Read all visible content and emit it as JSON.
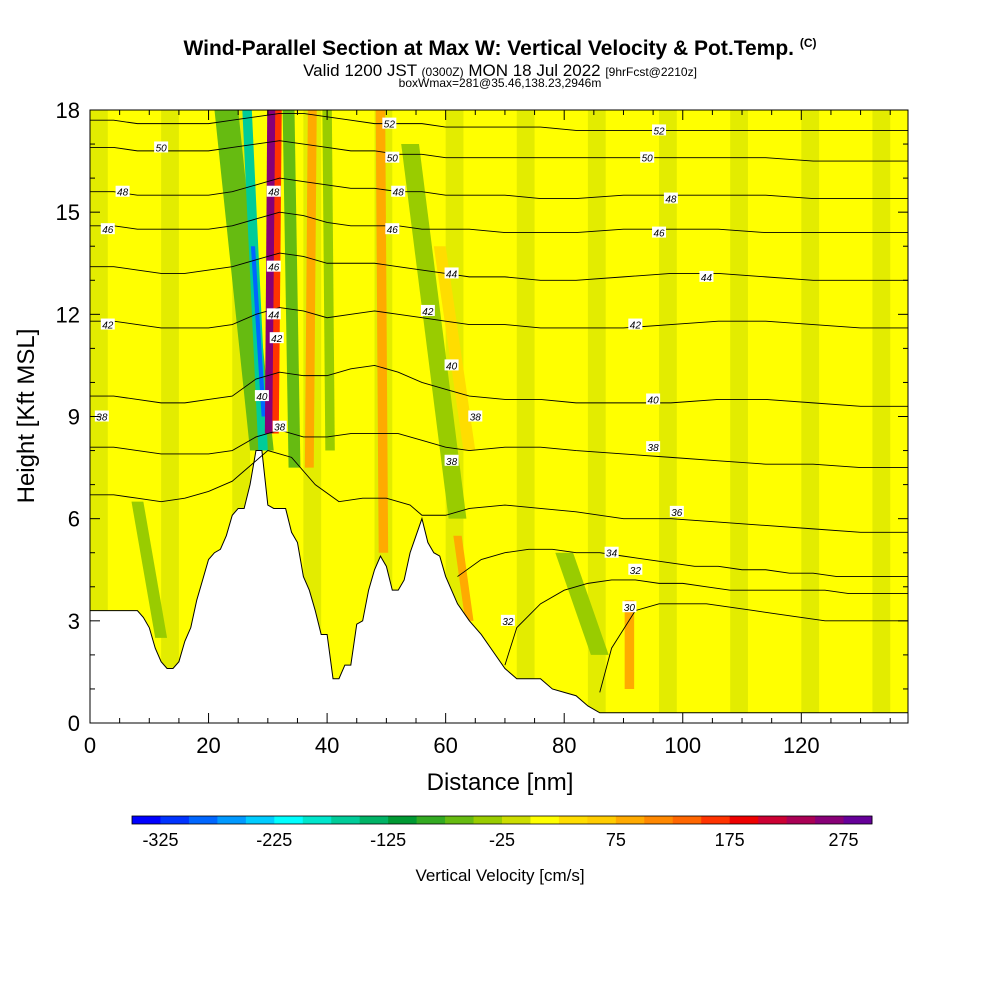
{
  "header": {
    "title": "Wind-Parallel Section at Max W: Vertical Velocity & Pot.Temp.",
    "copyright": "(C)",
    "valid_prefix": "Valid 1200 JST",
    "valid_utc": "(0300Z)",
    "valid_date": "MON 18 Jul 2022",
    "forecast": "[9hrFcst@2210z]",
    "boxwmax": "boxWmax=281@35.46,138.23,2946m"
  },
  "chart_data": {
    "type": "heatmap",
    "title": "Wind-Parallel Section at Max W: Vertical Velocity & Pot.Temp.",
    "xlabel": "Distance [nm]",
    "ylabel": "Height [Kft MSL]",
    "xlim": [
      0,
      138
    ],
    "ylim": [
      0,
      18
    ],
    "x_ticks": [
      0,
      20,
      40,
      60,
      80,
      100,
      120
    ],
    "y_ticks": [
      0,
      3,
      6,
      9,
      12,
      15,
      18
    ],
    "grid": false,
    "colorbar": {
      "label": "Vertical Velocity [cm/s]",
      "ticks": [
        -325,
        -225,
        -125,
        -25,
        75,
        175,
        275
      ],
      "min": -350,
      "step": 25,
      "colors": [
        "#0000ff",
        "#0033ff",
        "#0066ff",
        "#0099ff",
        "#00ccff",
        "#00ffff",
        "#00e6cc",
        "#00cc99",
        "#00b366",
        "#009933",
        "#33aa22",
        "#66bb11",
        "#99cc00",
        "#ccdd00",
        "#ffff00",
        "#ffdd00",
        "#ffcc00",
        "#ffaa00",
        "#ff8800",
        "#ff6600",
        "#ff3300",
        "#ee0000",
        "#cc0033",
        "#aa0055",
        "#880077",
        "#660099"
      ]
    },
    "terrain": [
      [
        0,
        3.3
      ],
      [
        5,
        3.3
      ],
      [
        8,
        3.3
      ],
      [
        9,
        3.1
      ],
      [
        10,
        2.8
      ],
      [
        11,
        2.2
      ],
      [
        12,
        1.8
      ],
      [
        13,
        1.6
      ],
      [
        14,
        1.6
      ],
      [
        15,
        1.8
      ],
      [
        16,
        2.4
      ],
      [
        17,
        2.8
      ],
      [
        18,
        3.6
      ],
      [
        19,
        4.2
      ],
      [
        20,
        4.8
      ],
      [
        21,
        5.0
      ],
      [
        22,
        5.1
      ],
      [
        23,
        5.5
      ],
      [
        24,
        6.1
      ],
      [
        25,
        6.3
      ],
      [
        26,
        6.3
      ],
      [
        27,
        7.0
      ],
      [
        28,
        8.0
      ],
      [
        29,
        8.0
      ],
      [
        30,
        6.4
      ],
      [
        31,
        6.3
      ],
      [
        32,
        6.3
      ],
      [
        33,
        6.3
      ],
      [
        34,
        5.6
      ],
      [
        35,
        5.3
      ],
      [
        36,
        4.3
      ],
      [
        37,
        3.9
      ],
      [
        38,
        3.3
      ],
      [
        39,
        2.6
      ],
      [
        40,
        2.6
      ],
      [
        41,
        1.3
      ],
      [
        42,
        1.3
      ],
      [
        43,
        1.7
      ],
      [
        44,
        1.7
      ],
      [
        45,
        2.9
      ],
      [
        46,
        3.0
      ],
      [
        47,
        3.9
      ],
      [
        48,
        4.5
      ],
      [
        49,
        4.9
      ],
      [
        50,
        4.6
      ],
      [
        51,
        3.9
      ],
      [
        52,
        3.9
      ],
      [
        53,
        4.2
      ],
      [
        54,
        5.0
      ],
      [
        55,
        5.5
      ],
      [
        56,
        6.0
      ],
      [
        57,
        5.3
      ],
      [
        58,
        5.0
      ],
      [
        59,
        4.9
      ],
      [
        60,
        4.3
      ],
      [
        62,
        3.5
      ],
      [
        64,
        3.0
      ],
      [
        66,
        2.6
      ],
      [
        68,
        2.1
      ],
      [
        70,
        1.6
      ],
      [
        72,
        1.3
      ],
      [
        74,
        1.3
      ],
      [
        76,
        1.3
      ],
      [
        78,
        1.0
      ],
      [
        80,
        0.9
      ],
      [
        82,
        0.8
      ],
      [
        84,
        0.5
      ],
      [
        86,
        0.3
      ],
      [
        90,
        0.3
      ],
      [
        100,
        0.3
      ],
      [
        110,
        0.3
      ],
      [
        120,
        0.3
      ],
      [
        130,
        0.3
      ],
      [
        138,
        0.3
      ]
    ],
    "theta_contours": [
      {
        "label": "30",
        "x": [
          86,
          88,
          92,
          96,
          100,
          104,
          108,
          112,
          116,
          120,
          124,
          128,
          132,
          138
        ],
        "y": [
          0.9,
          2.2,
          3.3,
          3.5,
          3.5,
          3.5,
          3.4,
          3.3,
          3.2,
          3.1,
          3.0,
          3.0,
          3.0,
          3.0
        ]
      },
      {
        "label": "32",
        "x": [
          70,
          72,
          76,
          80,
          84,
          88,
          92,
          96,
          100,
          104,
          108,
          112,
          116,
          120,
          124,
          128,
          132,
          138
        ],
        "y": [
          1.7,
          2.8,
          3.5,
          3.9,
          4.1,
          4.2,
          4.2,
          4.1,
          4.1,
          4.0,
          3.9,
          3.9,
          3.9,
          3.9,
          3.9,
          3.8,
          3.8,
          3.8
        ]
      },
      {
        "label": "34",
        "x": [
          62,
          66,
          70,
          74,
          78,
          82,
          86,
          90,
          94,
          98,
          102,
          106,
          110,
          114,
          118,
          122,
          126,
          130,
          134,
          138
        ],
        "y": [
          4.3,
          4.8,
          5.0,
          5.1,
          5.1,
          5.0,
          5.0,
          4.9,
          4.8,
          4.7,
          4.6,
          4.6,
          4.5,
          4.5,
          4.4,
          4.4,
          4.3,
          4.3,
          4.3,
          4.3
        ]
      },
      {
        "label": "36",
        "x": [
          0,
          4,
          8,
          12,
          16,
          20,
          24,
          26,
          30,
          34,
          38,
          42,
          46,
          50,
          54,
          56,
          60,
          64,
          70,
          76,
          82,
          90,
          98,
          106,
          114,
          122,
          130,
          138
        ],
        "y": [
          6.7,
          6.7,
          6.6,
          6.5,
          6.6,
          6.8,
          7.1,
          7.4,
          8.0,
          7.8,
          7.0,
          6.5,
          6.6,
          6.6,
          6.4,
          6.1,
          6.1,
          6.3,
          6.4,
          6.3,
          6.2,
          6.0,
          6.0,
          5.9,
          5.8,
          5.7,
          5.6,
          5.6
        ]
      },
      {
        "label": "38",
        "x": [
          0,
          4,
          8,
          12,
          16,
          20,
          24,
          28,
          32,
          36,
          40,
          44,
          48,
          52,
          56,
          60,
          64,
          70,
          76,
          82,
          90,
          98,
          106,
          114,
          122,
          130,
          138
        ],
        "y": [
          8.1,
          8.1,
          8.0,
          7.9,
          7.9,
          7.9,
          8.0,
          8.4,
          8.6,
          8.4,
          8.4,
          8.5,
          8.5,
          8.5,
          8.3,
          8.1,
          8.0,
          8.1,
          8.1,
          8.0,
          7.9,
          7.8,
          7.7,
          7.6,
          7.6,
          7.5,
          7.5
        ]
      },
      {
        "label": "40",
        "x": [
          0,
          4,
          8,
          12,
          16,
          20,
          24,
          28,
          32,
          36,
          40,
          44,
          48,
          52,
          56,
          60,
          64,
          70,
          76,
          82,
          90,
          98,
          106,
          114,
          122,
          130,
          138
        ],
        "y": [
          9.6,
          9.6,
          9.5,
          9.4,
          9.4,
          9.5,
          9.6,
          10.1,
          10.3,
          10.2,
          10.2,
          10.4,
          10.5,
          10.3,
          10.0,
          9.8,
          9.6,
          9.5,
          9.5,
          9.4,
          9.4,
          9.4,
          9.5,
          9.5,
          9.4,
          9.3,
          9.3
        ]
      },
      {
        "label": "42",
        "x": [
          0,
          4,
          8,
          12,
          16,
          20,
          24,
          28,
          32,
          36,
          40,
          44,
          48,
          52,
          56,
          60,
          64,
          70,
          76,
          82,
          90,
          98,
          106,
          114,
          122,
          130,
          138
        ],
        "y": [
          11.8,
          11.8,
          11.7,
          11.6,
          11.6,
          11.6,
          11.7,
          12.0,
          12.2,
          12.1,
          11.9,
          12.0,
          12.1,
          12.0,
          11.9,
          11.8,
          11.7,
          11.7,
          11.6,
          11.6,
          11.6,
          11.7,
          11.8,
          11.8,
          11.7,
          11.6,
          11.6
        ]
      },
      {
        "label": "44",
        "x": [
          0,
          4,
          8,
          12,
          16,
          20,
          24,
          28,
          32,
          36,
          40,
          44,
          48,
          52,
          56,
          60,
          64,
          70,
          76,
          82,
          90,
          98,
          106,
          114,
          122,
          130,
          138
        ],
        "y": [
          13.4,
          13.4,
          13.3,
          13.2,
          13.2,
          13.3,
          13.4,
          13.6,
          13.8,
          13.7,
          13.5,
          13.5,
          13.5,
          13.4,
          13.3,
          13.2,
          13.1,
          13.1,
          13.0,
          13.0,
          13.1,
          13.2,
          13.2,
          13.1,
          13.0,
          13.0,
          13.0
        ]
      },
      {
        "label": "46",
        "x": [
          0,
          4,
          8,
          12,
          16,
          20,
          24,
          28,
          32,
          36,
          40,
          44,
          48,
          52,
          56,
          60,
          64,
          70,
          76,
          82,
          90,
          98,
          106,
          114,
          122,
          130,
          138
        ],
        "y": [
          14.6,
          14.6,
          14.5,
          14.5,
          14.5,
          14.5,
          14.6,
          14.8,
          15.0,
          14.9,
          14.7,
          14.6,
          14.6,
          14.6,
          14.5,
          14.5,
          14.5,
          14.4,
          14.4,
          14.4,
          14.5,
          14.5,
          14.5,
          14.4,
          14.4,
          14.4,
          14.4
        ]
      },
      {
        "label": "48",
        "x": [
          0,
          4,
          8,
          12,
          16,
          20,
          24,
          28,
          32,
          36,
          40,
          44,
          48,
          52,
          56,
          60,
          64,
          70,
          76,
          82,
          90,
          98,
          106,
          114,
          122,
          130,
          138
        ],
        "y": [
          15.6,
          15.6,
          15.5,
          15.5,
          15.5,
          15.5,
          15.6,
          15.8,
          16.0,
          15.9,
          15.8,
          15.7,
          15.7,
          15.6,
          15.6,
          15.5,
          15.5,
          15.5,
          15.4,
          15.4,
          15.5,
          15.5,
          15.5,
          15.5,
          15.4,
          15.4,
          15.4
        ]
      },
      {
        "label": "50",
        "x": [
          0,
          4,
          8,
          12,
          16,
          20,
          24,
          28,
          32,
          36,
          40,
          44,
          48,
          52,
          56,
          60,
          64,
          70,
          76,
          82,
          90,
          98,
          106,
          114,
          122,
          130,
          138
        ],
        "y": [
          16.9,
          16.9,
          16.8,
          16.8,
          16.8,
          16.8,
          16.9,
          17.0,
          17.1,
          17.0,
          16.9,
          16.8,
          16.8,
          16.7,
          16.7,
          16.6,
          16.6,
          16.6,
          16.6,
          16.6,
          16.6,
          16.6,
          16.6,
          16.6,
          16.5,
          16.5,
          16.5
        ]
      },
      {
        "label": "52",
        "x": [
          0,
          4,
          8,
          12,
          16,
          20,
          24,
          28,
          32,
          36,
          40,
          44,
          48,
          52,
          56,
          60,
          64,
          70,
          76,
          82,
          90,
          98,
          106,
          114,
          122,
          130,
          138
        ],
        "y": [
          17.7,
          17.7,
          17.6,
          17.6,
          17.6,
          17.6,
          17.7,
          17.8,
          17.9,
          17.9,
          17.8,
          17.7,
          17.6,
          17.6,
          17.6,
          17.5,
          17.5,
          17.5,
          17.5,
          17.4,
          17.4,
          17.4,
          17.4,
          17.4,
          17.4,
          17.4,
          17.4
        ]
      }
    ],
    "contour_labels": [
      {
        "text": "52",
        "x": 50.5,
        "y": 17.6
      },
      {
        "text": "52",
        "x": 96,
        "y": 17.4
      },
      {
        "text": "50",
        "x": 12,
        "y": 16.9
      },
      {
        "text": "50",
        "x": 51,
        "y": 16.6
      },
      {
        "text": "50",
        "x": 94,
        "y": 16.6
      },
      {
        "text": "48",
        "x": 5.5,
        "y": 15.6
      },
      {
        "text": "48",
        "x": 31,
        "y": 15.6
      },
      {
        "text": "48",
        "x": 52,
        "y": 15.6
      },
      {
        "text": "48",
        "x": 98,
        "y": 15.4
      },
      {
        "text": "46",
        "x": 3,
        "y": 14.5
      },
      {
        "text": "46",
        "x": 51,
        "y": 14.5
      },
      {
        "text": "46",
        "x": 96,
        "y": 14.4
      },
      {
        "text": "46",
        "x": 31,
        "y": 13.4
      },
      {
        "text": "44",
        "x": 61,
        "y": 13.2
      },
      {
        "text": "44",
        "x": 104,
        "y": 13.1
      },
      {
        "text": "44",
        "x": 31,
        "y": 12.0
      },
      {
        "text": "42",
        "x": 3,
        "y": 11.7
      },
      {
        "text": "42",
        "x": 57,
        "y": 12.1
      },
      {
        "text": "42",
        "x": 92,
        "y": 11.7
      },
      {
        "text": "42",
        "x": 31.5,
        "y": 11.3
      },
      {
        "text": "40",
        "x": 29,
        "y": 9.6
      },
      {
        "text": "40",
        "x": 61,
        "y": 10.5
      },
      {
        "text": "40",
        "x": 95,
        "y": 9.5
      },
      {
        "text": "38",
        "x": 2,
        "y": 9.0
      },
      {
        "text": "38",
        "x": 32,
        "y": 8.7
      },
      {
        "text": "38",
        "x": 65,
        "y": 9.0
      },
      {
        "text": "38",
        "x": 95,
        "y": 8.1
      },
      {
        "text": "38",
        "x": 61,
        "y": 7.7
      },
      {
        "text": "36",
        "x": 99,
        "y": 6.2
      },
      {
        "text": "34",
        "x": 88,
        "y": 5.0
      },
      {
        "text": "32",
        "x": 92,
        "y": 4.5
      },
      {
        "text": "32",
        "x": 70.5,
        "y": 3.0
      },
      {
        "text": "30",
        "x": 91,
        "y": 3.4
      }
    ],
    "velocity_bands": [
      {
        "value": -75,
        "x0": 23,
        "y0": 18,
        "x1": 29,
        "y1": 8,
        "width": 4.0
      },
      {
        "value": -175,
        "x0": 26.5,
        "y0": 18,
        "x1": 29.2,
        "y1": 8,
        "width": 1.6
      },
      {
        "value": -300,
        "x0": 27.5,
        "y0": 14,
        "x1": 29.3,
        "y1": 9,
        "width": 0.7
      },
      {
        "value": 250,
        "x0": 30.7,
        "y0": 18,
        "x1": 30.3,
        "y1": 8.5,
        "width": 1.6
      },
      {
        "value": 150,
        "x0": 31.8,
        "y0": 18,
        "x1": 31.3,
        "y1": 8.5,
        "width": 1.1
      },
      {
        "value": -75,
        "x0": 33.5,
        "y0": 18,
        "x1": 34.5,
        "y1": 7.5,
        "width": 2.0
      },
      {
        "value": 75,
        "x0": 37.5,
        "y0": 18,
        "x1": 37,
        "y1": 7.5,
        "width": 1.5
      },
      {
        "value": -50,
        "x0": 40,
        "y0": 18,
        "x1": 40.5,
        "y1": 8,
        "width": 1.6
      },
      {
        "value": 75,
        "x0": 49,
        "y0": 18,
        "x1": 49.5,
        "y1": 5.0,
        "width": 1.6
      },
      {
        "value": -50,
        "x0": 54,
        "y0": 17,
        "x1": 62,
        "y1": 6,
        "width": 3.0
      },
      {
        "value": 25,
        "x0": 59,
        "y0": 14,
        "x1": 64,
        "y1": 8,
        "width": 2.0
      },
      {
        "value": -50,
        "x0": 8,
        "y0": 6.5,
        "x1": 12,
        "y1": 2.5,
        "width": 2.0
      },
      {
        "value": 75,
        "x0": 62,
        "y0": 5.5,
        "x1": 64,
        "y1": 3.0,
        "width": 1.4
      },
      {
        "value": -50,
        "x0": 80,
        "y0": 5,
        "x1": 86,
        "y1": 2,
        "width": 3.0
      },
      {
        "value": 75,
        "x0": 91,
        "y0": 3.6,
        "x1": 91,
        "y1": 1.0,
        "width": 1.6
      }
    ]
  }
}
